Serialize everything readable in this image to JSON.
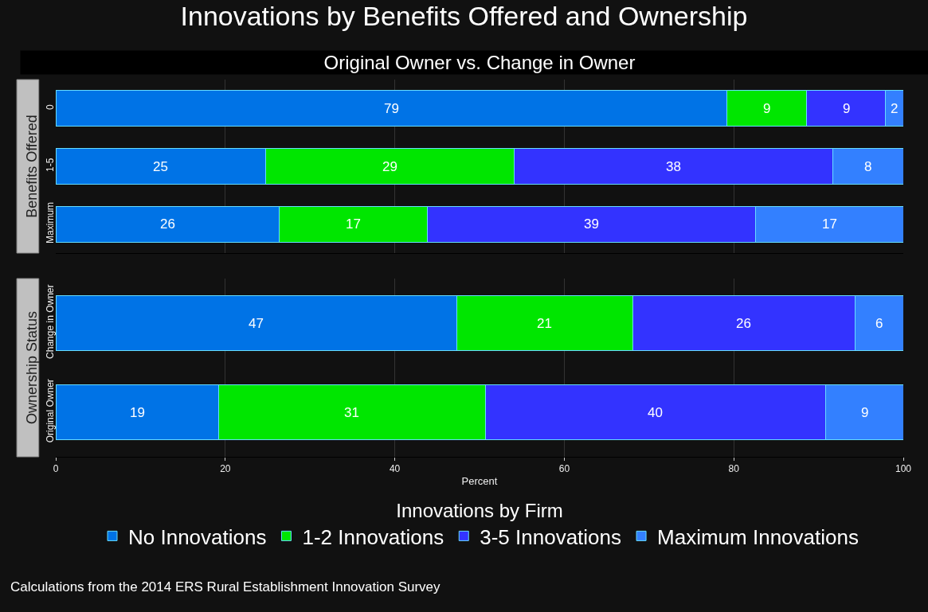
{
  "chart_data": [
    {
      "type": "bar",
      "orientation": "horizontal",
      "stacked": true,
      "title": "Innovations by Benefits Offered and Ownership",
      "subtitle": "Original Owner vs. Change in Owner",
      "ylabel": "Benefits Offered",
      "categories": [
        "0",
        "1-5",
        "Maximum"
      ],
      "xlim": [
        0,
        100
      ],
      "xticks": [
        0,
        20,
        40,
        60,
        80,
        100
      ],
      "tick_labels": "y",
      "grid": "x",
      "legend": false,
      "series": [
        {
          "color": "#0073e6",
          "values": [
            79.2,
            24.8,
            26.4
          ],
          "value_labels": [
            "79",
            "25",
            "26"
          ]
        },
        {
          "color": "#00e600",
          "values": [
            9.4,
            29.3,
            17.4
          ],
          "value_labels": [
            "9",
            "29",
            "17"
          ]
        },
        {
          "color": "#3333ff",
          "values": [
            9.3,
            37.6,
            38.8
          ],
          "value_labels": [
            "9",
            "38",
            "39"
          ]
        },
        {
          "color": "#3380ff",
          "values": [
            2.1,
            8.3,
            17.4
          ],
          "value_labels": [
            "2",
            "8",
            "17"
          ]
        }
      ]
    },
    {
      "type": "bar",
      "orientation": "horizontal",
      "stacked": true,
      "ylabel": "Ownership Status",
      "xlabel": "Percent",
      "categories": [
        "Change in Owner",
        "Original Owner"
      ],
      "xlim": [
        0,
        100
      ],
      "xticks": [
        0,
        20,
        40,
        60,
        80,
        100
      ],
      "grid": "x",
      "legend": "bottom",
      "legend_title": "Innovations by Firm",
      "annotations": [
        "Calculations from the 2014 ERS Rural Establishment Innovation Survey"
      ],
      "series": [
        {
          "name": "No Innovations",
          "color": "#0073e6",
          "values": [
            47.3,
            19.2
          ],
          "value_labels": [
            "47",
            "19"
          ]
        },
        {
          "name": "1-2 Innovations",
          "color": "#00e600",
          "values": [
            20.8,
            31.5
          ],
          "value_labels": [
            "21",
            "31"
          ]
        },
        {
          "name": "3-5 Innovations",
          "color": "#3333ff",
          "values": [
            26.2,
            40.1
          ],
          "value_labels": [
            "26",
            "40"
          ]
        },
        {
          "name": "Maximum Innovations",
          "color": "#3380ff",
          "values": [
            5.7,
            9.2
          ],
          "value_labels": [
            "6",
            "9"
          ]
        }
      ]
    }
  ]
}
